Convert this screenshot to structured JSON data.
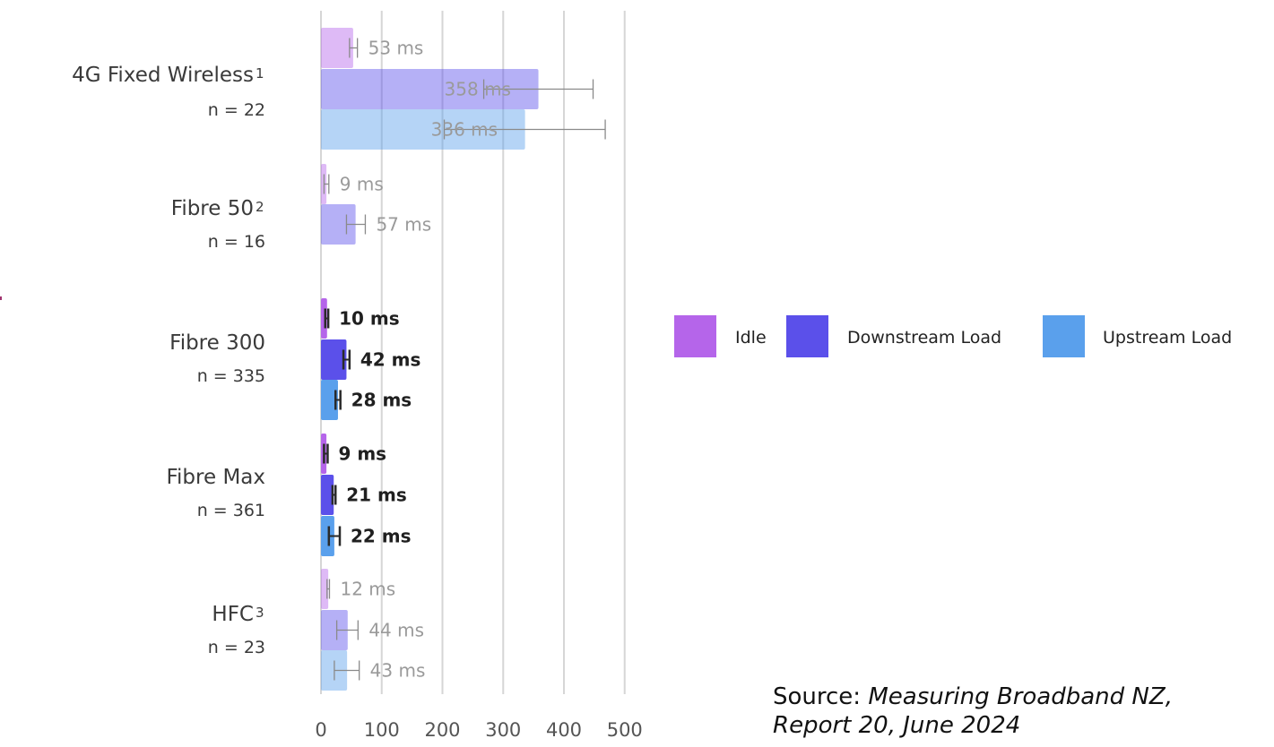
{
  "chart_data": {
    "type": "bar",
    "orientation": "horizontal",
    "title": "",
    "xlabel": "",
    "ylabel": "",
    "xlim": [
      0,
      500
    ],
    "xticks": [
      "0",
      "100",
      "200",
      "300",
      "400",
      "500"
    ],
    "grid": true,
    "legend_position": "right",
    "unit": "ms",
    "categories": [
      {
        "name": "4G Fixed Wireless",
        "sup": "1",
        "n": "n = 22",
        "faded": true
      },
      {
        "name": "Fibre 50",
        "sup": "2",
        "n": "n = 16",
        "faded": true
      },
      {
        "name": "Fibre 300",
        "sup": "",
        "n": "n = 335",
        "faded": false
      },
      {
        "name": "Fibre Max",
        "sup": "",
        "n": "n = 361",
        "faded": false
      },
      {
        "name": "HFC",
        "sup": "3",
        "n": "n = 23",
        "faded": true
      }
    ],
    "series": [
      {
        "name": "Idle",
        "color": "#b565ea",
        "values": [
          53,
          9,
          10,
          9,
          12
        ],
        "labels": [
          "53 ms",
          "9 ms",
          "10 ms",
          "9 ms",
          "12 ms"
        ],
        "error_low": [
          47,
          5,
          7,
          5,
          10
        ],
        "error_high": [
          60,
          13,
          12,
          11,
          14
        ]
      },
      {
        "name": "Downstream Load",
        "color": "#5b50ea",
        "values": [
          358,
          57,
          42,
          21,
          44
        ],
        "labels": [
          "358 ms",
          "57 ms",
          "42 ms",
          "21 ms",
          "44 ms"
        ],
        "error_low": [
          268,
          42,
          37,
          19,
          26
        ],
        "error_high": [
          448,
          73,
          47,
          24,
          61
        ]
      },
      {
        "name": "Upstream Load",
        "color": "#5aa0ec",
        "values": [
          336,
          null,
          28,
          22,
          43
        ],
        "labels": [
          "336 ms",
          "",
          "28 ms",
          "22 ms",
          "43 ms"
        ],
        "error_low": [
          203,
          null,
          24,
          13,
          22
        ],
        "error_high": [
          468,
          null,
          32,
          31,
          63
        ]
      }
    ]
  },
  "source": {
    "prefix": "Source: ",
    "citation_line1": "Measuring Broadband NZ,",
    "citation_line2": "Report 20, June 2024"
  },
  "colors": {
    "grid": "#d6d6d6",
    "faded_text": "#9a9a9a",
    "strong_text": "#1f1f1f",
    "error_bar": "#555555",
    "stray_mark": "#a0336e"
  }
}
